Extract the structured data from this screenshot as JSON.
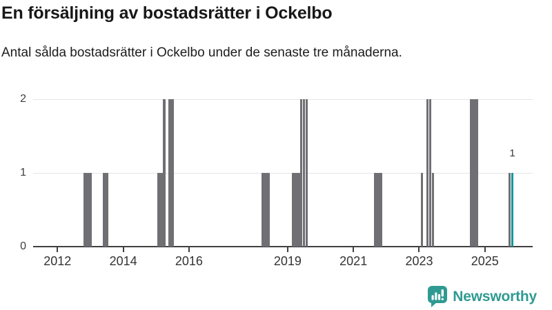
{
  "title": "En försäljning av bostadsrätter i Ockelbo",
  "subtitle": "Antal sålda bostadsrätter i Ockelbo under de senaste tre månaderna.",
  "footer": {
    "brand": "Newsworthy"
  },
  "colors": {
    "bar": "#6f6f74",
    "highlight": "#0a989e",
    "brand_teal": "#2f9a92",
    "grid": "#e4e4e4",
    "axis": "#3f3f3f",
    "text": "#181818"
  },
  "chart_data": {
    "type": "bar",
    "title": "En försäljning av bostadsrätter i Ockelbo",
    "subtitle": "Antal sålda bostadsrätter i Ockelbo under de senaste tre månaderna.",
    "xlabel": "",
    "ylabel": "",
    "ylim": [
      0,
      2
    ],
    "yticks": [
      0,
      1,
      2
    ],
    "xtick_years": [
      2012,
      2014,
      2016,
      2019,
      2021,
      2023,
      2025
    ],
    "grid": "horizontal",
    "legend": "none",
    "highlight_label": "1",
    "bars": [
      {
        "month": "2012-11",
        "value": 1
      },
      {
        "month": "2012-12",
        "value": 1
      },
      {
        "month": "2013-01",
        "value": 1
      },
      {
        "month": "2013-06",
        "value": 1
      },
      {
        "month": "2013-07",
        "value": 1
      },
      {
        "month": "2015-02",
        "value": 1
      },
      {
        "month": "2015-03",
        "value": 1
      },
      {
        "month": "2015-04",
        "value": 2
      },
      {
        "month": "2015-06",
        "value": 2
      },
      {
        "month": "2015-07",
        "value": 2
      },
      {
        "month": "2018-04",
        "value": 1
      },
      {
        "month": "2018-05",
        "value": 1
      },
      {
        "month": "2018-06",
        "value": 1
      },
      {
        "month": "2019-03",
        "value": 1
      },
      {
        "month": "2019-04",
        "value": 1
      },
      {
        "month": "2019-05",
        "value": 1
      },
      {
        "month": "2019-06",
        "value": 2
      },
      {
        "month": "2019-07",
        "value": 2
      },
      {
        "month": "2019-08",
        "value": 2
      },
      {
        "month": "2021-09",
        "value": 1
      },
      {
        "month": "2021-10",
        "value": 1
      },
      {
        "month": "2021-11",
        "value": 1
      },
      {
        "month": "2023-02",
        "value": 1
      },
      {
        "month": "2023-04",
        "value": 2
      },
      {
        "month": "2023-05",
        "value": 2
      },
      {
        "month": "2023-06",
        "value": 1
      },
      {
        "month": "2024-08",
        "value": 2
      },
      {
        "month": "2024-09",
        "value": 2
      },
      {
        "month": "2024-10",
        "value": 2
      },
      {
        "month": "2025-10",
        "value": 1
      },
      {
        "month": "2025-11",
        "value": 1,
        "highlight": true,
        "label": "1"
      }
    ]
  }
}
